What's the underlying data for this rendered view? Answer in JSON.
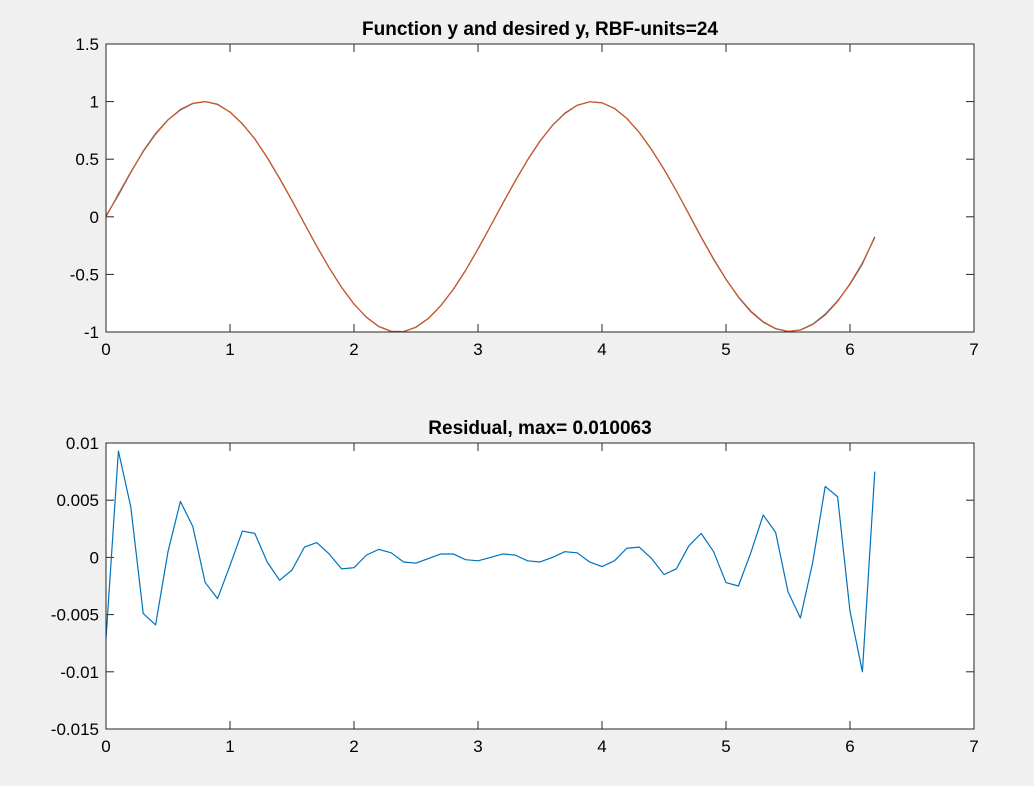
{
  "colors": {
    "figure_bg": "#f0f0f0",
    "axes_bg": "#ffffff",
    "axis": "#262626",
    "series_blue": "#0072bd",
    "series_orange": "#d95319"
  },
  "chart_data": [
    {
      "type": "line",
      "title": "Function y and desired y, RBF-units=24",
      "xlabel": "",
      "ylabel": "",
      "xlim": [
        0,
        7
      ],
      "ylim": [
        -1,
        1.5
      ],
      "xticks": [
        0,
        1,
        2,
        3,
        4,
        5,
        6,
        7
      ],
      "xtick_labels": [
        "0",
        "1",
        "2",
        "3",
        "4",
        "5",
        "6",
        "7"
      ],
      "yticks": [
        -1,
        -0.5,
        0,
        0.5,
        1,
        1.5
      ],
      "ytick_labels": [
        "-1",
        "-0.5",
        "0",
        "0.5",
        "1",
        "1.5"
      ],
      "grid": false,
      "legend": "none",
      "series": [
        {
          "color": "#0072bd",
          "x": [
            0,
            0.1,
            0.2,
            0.3,
            0.4,
            0.5,
            0.6,
            0.7,
            0.8,
            0.9,
            1.0,
            1.1,
            1.2,
            1.3,
            1.4,
            1.5,
            1.6,
            1.7,
            1.8,
            1.9,
            2.0,
            2.1,
            2.2,
            2.3,
            2.4,
            2.5,
            2.6,
            2.7,
            2.8,
            2.9,
            3.0,
            3.1,
            3.2,
            3.3,
            3.4,
            3.5,
            3.6,
            3.7,
            3.8,
            3.9,
            4.0,
            4.1,
            4.2,
            4.3,
            4.4,
            4.5,
            4.6,
            4.7,
            4.8,
            4.9,
            5.0,
            5.1,
            5.2,
            5.3,
            5.4,
            5.5,
            5.6,
            5.7,
            5.8,
            5.9,
            6.0,
            6.1,
            6.2
          ],
          "y": [
            0.007,
            0.189,
            0.385,
            0.57,
            0.723,
            0.842,
            0.927,
            0.983,
            1.0,
            0.977,
            0.909,
            0.806,
            0.677,
            0.513,
            0.332,
            0.142,
            -0.059,
            -0.256,
            -0.443,
            -0.613,
            -0.758,
            -0.871,
            -0.953,
            -0.994,
            -0.996,
            -0.958,
            -0.882,
            -0.771,
            -0.631,
            -0.465,
            -0.279,
            -0.083,
            0.117,
            0.31,
            0.494,
            0.657,
            0.793,
            0.9,
            0.968,
            0.998,
            0.99,
            0.941,
            0.854,
            0.733,
            0.583,
            0.412,
            0.224,
            0.026,
            -0.176,
            -0.366,
            -0.542,
            -0.697,
            -0.824,
            -0.915,
            -0.972,
            -0.995,
            -0.982,
            -0.931,
            -0.846,
            -0.73,
            -0.586,
            -0.409,
            -0.173
          ]
        },
        {
          "color": "#d95319",
          "x": [
            0,
            0.1,
            0.2,
            0.3,
            0.4,
            0.5,
            0.6,
            0.7,
            0.8,
            0.9,
            1.0,
            1.1,
            1.2,
            1.3,
            1.4,
            1.5,
            1.6,
            1.7,
            1.8,
            1.9,
            2.0,
            2.1,
            2.2,
            2.3,
            2.4,
            2.5,
            2.6,
            2.7,
            2.8,
            2.9,
            3.0,
            3.1,
            3.2,
            3.3,
            3.4,
            3.5,
            3.6,
            3.7,
            3.8,
            3.9,
            4.0,
            4.1,
            4.2,
            4.3,
            4.4,
            4.5,
            4.6,
            4.7,
            4.8,
            4.9,
            5.0,
            5.1,
            5.2,
            5.3,
            5.4,
            5.5,
            5.6,
            5.7,
            5.8,
            5.9,
            6.0,
            6.1,
            6.2
          ],
          "y": [
            0.0,
            0.199,
            0.389,
            0.565,
            0.717,
            0.841,
            0.932,
            0.985,
            1.0,
            0.974,
            0.909,
            0.808,
            0.675,
            0.516,
            0.335,
            0.141,
            -0.058,
            -0.256,
            -0.443,
            -0.612,
            -0.757,
            -0.872,
            -0.952,
            -0.994,
            -0.996,
            -0.959,
            -0.883,
            -0.772,
            -0.631,
            -0.465,
            -0.279,
            -0.083,
            0.117,
            0.311,
            0.494,
            0.657,
            0.793,
            0.896,
            0.968,
            0.998,
            0.989,
            0.941,
            0.855,
            0.733,
            0.583,
            0.412,
            0.225,
            0.024,
            -0.178,
            -0.37,
            -0.544,
            -0.694,
            -0.818,
            -0.911,
            -0.97,
            -0.994,
            -0.983,
            -0.935,
            -0.853,
            -0.735,
            -0.581,
            -0.4,
            -0.181
          ]
        }
      ]
    },
    {
      "type": "line",
      "title": "Residual, max= 0.010063",
      "xlabel": "",
      "ylabel": "",
      "xlim": [
        0,
        7
      ],
      "ylim": [
        -0.015,
        0.01
      ],
      "xticks": [
        0,
        1,
        2,
        3,
        4,
        5,
        6,
        7
      ],
      "xtick_labels": [
        "0",
        "1",
        "2",
        "3",
        "4",
        "5",
        "6",
        "7"
      ],
      "yticks": [
        -0.015,
        -0.01,
        -0.005,
        0,
        0.005,
        0.01
      ],
      "ytick_labels": [
        "-0.015",
        "-0.01",
        "-0.005",
        "0",
        "0.005",
        "0.01"
      ],
      "grid": false,
      "legend": "none",
      "series": [
        {
          "color": "#0072bd",
          "x": [
            0,
            0.1,
            0.2,
            0.3,
            0.4,
            0.5,
            0.6,
            0.7,
            0.8,
            0.9,
            1.0,
            1.1,
            1.2,
            1.3,
            1.4,
            1.5,
            1.6,
            1.7,
            1.8,
            1.9,
            2.0,
            2.1,
            2.2,
            2.3,
            2.4,
            2.5,
            2.6,
            2.7,
            2.8,
            2.9,
            3.0,
            3.1,
            3.2,
            3.3,
            3.4,
            3.5,
            3.6,
            3.7,
            3.8,
            3.9,
            4.0,
            4.1,
            4.2,
            4.3,
            4.4,
            4.5,
            4.6,
            4.7,
            4.8,
            4.9,
            5.0,
            5.1,
            5.2,
            5.3,
            5.4,
            5.5,
            5.6,
            5.7,
            5.8,
            5.9,
            6.0,
            6.1,
            6.2
          ],
          "y": [
            -0.0071,
            0.0093,
            0.0044,
            -0.0049,
            -0.0059,
            0.0005,
            0.0049,
            0.0027,
            -0.0022,
            -0.0036,
            -0.0007,
            0.0023,
            0.0021,
            -0.0004,
            -0.002,
            -0.0011,
            0.0009,
            0.0013,
            0.0003,
            -0.001,
            -0.0009,
            0.0002,
            0.0007,
            0.0004,
            -0.0004,
            -0.0005,
            -0.0001,
            0.0003,
            0.0003,
            -0.0002,
            -0.0003,
            0.0,
            0.0003,
            0.0002,
            -0.0003,
            -0.0004,
            0.0,
            0.0005,
            0.0004,
            -0.0004,
            -0.0008,
            -0.0003,
            0.0008,
            0.0009,
            -0.0001,
            -0.0015,
            -0.001,
            0.001,
            0.0021,
            0.0005,
            -0.0022,
            -0.0025,
            0.0004,
            0.0037,
            0.0022,
            -0.003,
            -0.0053,
            -0.0004,
            0.0062,
            0.0053,
            -0.0047,
            -0.01,
            0.0075
          ]
        }
      ]
    }
  ]
}
